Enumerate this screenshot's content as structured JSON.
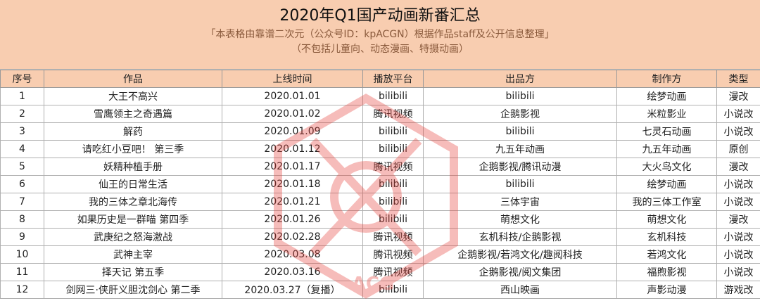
{
  "header": {
    "title": "2020年Q1国产动画新番汇总",
    "subtitle": "「本表格由靠谱二次元（公众号ID：kpACGN）根据作品staff及公开信息整理」",
    "note": "（不包括儿童向、动态漫画、特摄动画）"
  },
  "watermark": {
    "text": "ACG",
    "color": "#e8433b"
  },
  "table": {
    "columns": [
      "序号",
      "作品",
      "上线时间",
      "播放平台",
      "出品方",
      "制作方",
      "类型"
    ],
    "rows": [
      [
        "1",
        "大王不高兴",
        "2020.01.01",
        "bilibili",
        "bilibili",
        "绘梦动画",
        "漫改"
      ],
      [
        "2",
        "雪鹰领主之奇遇篇",
        "2020.01.02",
        "腾讯视频",
        "企鹅影视",
        "米粒影业",
        "小说改"
      ],
      [
        "3",
        "解药",
        "2020.01.09",
        "bilibili",
        "bilibili",
        "七灵石动画",
        "小说改"
      ],
      [
        "4",
        "请吃红小豆吧！ 第三季",
        "2020.01.12",
        "bilibili",
        "九五年动画",
        "九五年动画",
        "原创"
      ],
      [
        "5",
        "妖精种植手册",
        "2020.01.17",
        "腾讯视频",
        "企鹅影视/腾讯动漫",
        "大火鸟文化",
        "漫改"
      ],
      [
        "6",
        "仙王的日常生活",
        "2020.01.18",
        "bilibili",
        "bilibili",
        "绘梦动画",
        "小说改"
      ],
      [
        "7",
        "我的三体之章北海传",
        "2020.01.21",
        "bilibili",
        "三体宇宙",
        "我的三体工作室",
        "小说改"
      ],
      [
        "8",
        "如果历史是一群喵 第四季",
        "2020.01.26",
        "bilibili",
        "萌想文化",
        "萌想文化",
        "漫改"
      ],
      [
        "9",
        "武庚纪之怒海激战",
        "2020.02.28",
        "腾讯视频",
        "玄机科技/企鹅影视",
        "玄机科技",
        "小说改"
      ],
      [
        "10",
        "武神主宰",
        "2020.03.08",
        "腾讯视频",
        "企鹅影视/若鸿文化/趣阅科技",
        "若鸿文化",
        "小说改"
      ],
      [
        "11",
        "择天记 第五季",
        "2020.03.16",
        "腾讯视频",
        "企鹅影视/阅文集团",
        "福煦影视",
        "小说改"
      ],
      [
        "12",
        "剑网三·侠肝义胆沈剑心 第二季",
        "2020.03.27（复播）",
        "bilibili",
        "西山映画",
        "声影动漫",
        "游戏改"
      ]
    ]
  }
}
